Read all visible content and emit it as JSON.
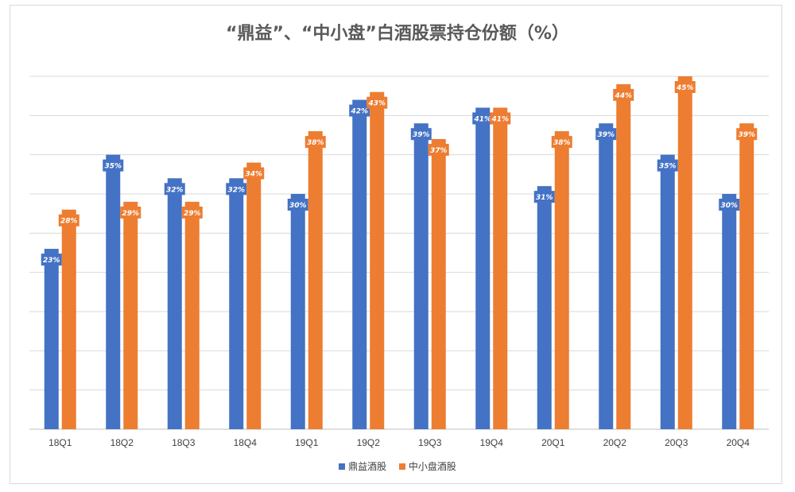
{
  "chart_data": {
    "type": "bar",
    "title": "“鼎益”、“中小盘”白酒股票持仓份额（%）",
    "categories": [
      "18Q1",
      "18Q2",
      "18Q3",
      "18Q4",
      "19Q1",
      "19Q2",
      "19Q3",
      "19Q4",
      "20Q1",
      "20Q2",
      "20Q3",
      "20Q4"
    ],
    "series": [
      {
        "name": "鼎益酒股",
        "color": "#4472C4",
        "values": [
          23,
          35,
          32,
          32,
          30,
          42,
          39,
          41,
          31,
          39,
          35,
          30
        ],
        "labels": [
          "23%",
          "35%",
          "32%",
          "32%",
          "30%",
          "42%",
          "39%",
          "41%",
          "31%",
          "39%",
          "35%",
          "30%"
        ]
      },
      {
        "name": "中小盘酒股",
        "color": "#ED7D31",
        "values": [
          28,
          29,
          29,
          34,
          38,
          43,
          37,
          41,
          38,
          44,
          45,
          39
        ],
        "labels": [
          "28%",
          "29%",
          "29%",
          "34%",
          "38%",
          "43%",
          "37%",
          "41%",
          "38%",
          "44%",
          "45%",
          "39%"
        ]
      }
    ],
    "ylim": [
      0,
      45
    ],
    "grid": true,
    "legend_position": "bottom"
  }
}
